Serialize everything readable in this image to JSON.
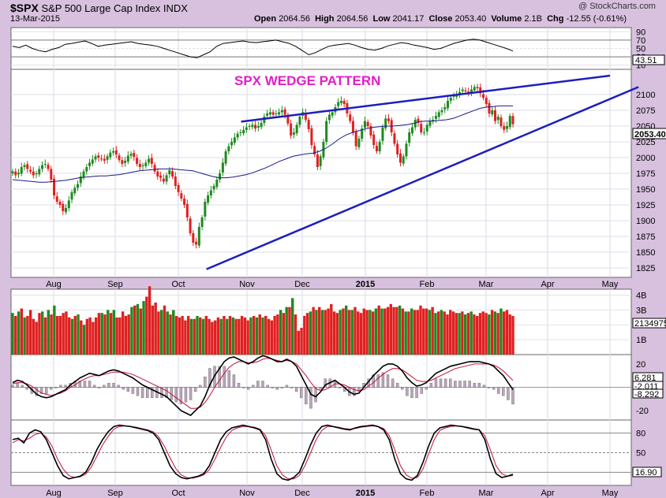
{
  "header": {
    "symbol": "$SPX",
    "name": "S&P 500 Large Cap Index",
    "exchange": "INDX",
    "date": "13-Mar-2015",
    "brand": "@ StockCharts.com",
    "open_label": "Open",
    "open": "2064.56",
    "high_label": "High",
    "high": "2064.56",
    "low_label": "Low",
    "low": "2041.17",
    "close_label": "Close",
    "close": "2053.40",
    "volume_label": "Volume",
    "volume": "2.1B",
    "chg_label": "Chg",
    "chg": "-12.55 (-0.61%)"
  },
  "colors": {
    "up": "#1e8a1e",
    "down": "#e02020",
    "trend": "#1d1dbf",
    "title": "#e01ec8",
    "panel": "#ffffff",
    "bg": "#d8c1df"
  },
  "chart_data": [
    {
      "type": "line",
      "panel": "rsi",
      "yticks": [
        10,
        30,
        50,
        70,
        90
      ],
      "ylim": [
        0,
        100
      ],
      "last_value_label": "43.51",
      "values": [
        55,
        52,
        58,
        50,
        45,
        42,
        48,
        52,
        60,
        62,
        65,
        68,
        62,
        55,
        58,
        60,
        62,
        64,
        66,
        62,
        60,
        58,
        55,
        50,
        45,
        40,
        35,
        30,
        28,
        35,
        42,
        55,
        62,
        64,
        66,
        68,
        65,
        64,
        66,
        68,
        70,
        66,
        62,
        55,
        45,
        35,
        40,
        48,
        55,
        58,
        60,
        62,
        58,
        52,
        48,
        46,
        50,
        56,
        60,
        64,
        62,
        58,
        55,
        52,
        48,
        50,
        56,
        62,
        66,
        70,
        72,
        70,
        65,
        60,
        55,
        50,
        44
      ]
    },
    {
      "type": "candlestick",
      "panel": "price",
      "title": "SPX WEDGE PATTERN",
      "ylim": [
        1810,
        2140
      ],
      "yticks": [
        1825,
        1850,
        1875,
        1900,
        1925,
        1950,
        1975,
        2000,
        2025,
        2050,
        2075,
        2100
      ],
      "last_value_label": "2053.40",
      "xlabels": [
        "Aug",
        "Sep",
        "Oct",
        "Nov",
        "Dec",
        "2015",
        "Feb",
        "Mar",
        "Apr",
        "May"
      ],
      "closes": [
        1978,
        1972,
        1976,
        1985,
        1988,
        1982,
        1978,
        1972,
        1975,
        1982,
        1988,
        1990,
        1982,
        1965,
        1940,
        1930,
        1925,
        1915,
        1920,
        1932,
        1945,
        1952,
        1958,
        1970,
        1978,
        1985,
        1992,
        1997,
        2002,
        2000,
        1998,
        1995,
        2002,
        2008,
        2010,
        2005,
        1996,
        1990,
        1995,
        2003,
        2006,
        2001,
        1990,
        1985,
        1988,
        1992,
        1998,
        1990,
        1978,
        1970,
        1968,
        1962,
        1972,
        1980,
        1970,
        1955,
        1945,
        1935,
        1925,
        1905,
        1880,
        1865,
        1862,
        1890,
        1905,
        1930,
        1940,
        1948,
        1955,
        1965,
        1975,
        1992,
        2010,
        2018,
        2025,
        2032,
        2038,
        2040,
        2044,
        2048,
        2050,
        2052,
        2046,
        2050,
        2055,
        2065,
        2070,
        2072,
        2068,
        2070,
        2072,
        2075,
        2068,
        2054,
        2035,
        2040,
        2052,
        2065,
        2072,
        2060,
        2045,
        2020,
        2005,
        1985,
        2002,
        2025,
        2058,
        2068,
        2072,
        2080,
        2088,
        2090,
        2085,
        2070,
        2058,
        2040,
        2018,
        2030,
        2046,
        2058,
        2050,
        2035,
        2020,
        2010,
        2025,
        2048,
        2062,
        2058,
        2040,
        2022,
        2005,
        1992,
        2002,
        2022,
        2040,
        2048,
        2060,
        2055,
        2040,
        2040,
        2052,
        2058,
        2060,
        2066,
        2072,
        2075,
        2080,
        2090,
        2095,
        2098,
        2100,
        2104,
        2108,
        2105,
        2102,
        2108,
        2112,
        2110,
        2102,
        2095,
        2085,
        2070,
        2075,
        2058,
        2065,
        2050,
        2044,
        2050,
        2066,
        2053
      ],
      "ma_values": [
        1965,
        1964,
        1963,
        1962,
        1961,
        1961,
        1962,
        1963,
        1964,
        1966,
        1968,
        1969,
        1970,
        1971,
        1971,
        1972,
        1973,
        1975,
        1977,
        1979,
        1980,
        1981,
        1982,
        1982,
        1982,
        1981,
        1980,
        1979,
        1976,
        1973,
        1970,
        1968,
        1968,
        1969,
        1971,
        1973,
        1976,
        1980,
        1984,
        1989,
        1994,
        1998,
        2002,
        2004,
        2006,
        2007,
        2010,
        2015,
        2022,
        2030,
        2036,
        2040,
        2043,
        2046,
        2048,
        2049,
        2050,
        2050,
        2051,
        2052,
        2054,
        2057,
        2058,
        2058,
        2059,
        2060,
        2062,
        2066,
        2070,
        2074,
        2078,
        2080,
        2081,
        2082,
        2082,
        2082
      ],
      "trendlines": [
        {
          "name": "upper-resistance",
          "x": [
            "2014-11-01",
            "2015-05-01"
          ],
          "y": [
            2057,
            2130
          ]
        },
        {
          "name": "lower-support",
          "x": [
            "2014-10-15",
            "2015-05-15"
          ],
          "y": [
            1823,
            2112
          ]
        }
      ]
    },
    {
      "type": "bar",
      "panel": "volume",
      "yticks": [
        "1B",
        "2B",
        "3B",
        "4B"
      ],
      "ylim": [
        0,
        4.4
      ],
      "last_value_label": "2134975",
      "values": [
        2.8,
        2.6,
        2.9,
        3.1,
        2.5,
        2.6,
        3.0,
        2.4,
        2.2,
        2.8,
        2.9,
        2.5,
        3.0,
        2.7,
        3.3,
        2.6,
        2.6,
        2.8,
        2.9,
        2.5,
        2.4,
        2.6,
        2.7,
        2.3,
        2.0,
        2.4,
        2.5,
        2.2,
        2.5,
        2.8,
        2.8,
        2.7,
        3.0,
        2.8,
        3.0,
        2.5,
        2.5,
        2.9,
        2.6,
        2.7,
        3.2,
        3.3,
        3.4,
        3.1,
        3.6,
        3.9,
        4.6,
        3.3,
        3.5,
        2.9,
        3.0,
        3.3,
        2.9,
        2.7,
        3.0,
        2.6,
        2.5,
        2.6,
        2.3,
        2.6,
        2.4,
        2.4,
        2.6,
        2.5,
        2.4,
        2.6,
        2.4,
        2.2,
        2.3,
        2.5,
        2.4,
        2.6,
        2.4,
        2.6,
        2.5,
        2.4,
        2.4,
        2.6,
        2.5,
        2.3,
        2.5,
        2.6,
        2.5,
        2.7,
        2.5,
        2.6,
        2.4,
        2.3,
        2.6,
        2.7,
        3.0,
        2.8,
        3.2,
        3.2,
        3.8,
        2.7,
        1.6,
        1.8,
        2.6,
        2.8,
        2.9,
        3.2,
        3.0,
        3.2,
        3.0,
        3.0,
        3.1,
        3.4,
        2.9,
        2.8,
        3.0,
        3.1,
        3.3,
        3.0,
        3.0,
        3.2,
        2.9,
        2.8,
        3.1,
        3.0,
        3.0,
        2.9,
        3.1,
        3.3,
        3.1,
        3.1,
        3.2,
        3.4,
        3.2,
        3.2,
        3.3,
        3.1,
        2.9,
        2.9,
        3.1,
        3.0,
        3.0,
        3.3,
        3.1,
        3.1,
        3.0,
        3.2,
        2.8,
        2.9,
        3.0,
        2.9,
        2.7,
        3.0,
        2.9,
        2.8,
        2.8,
        2.9,
        2.7,
        2.8,
        2.9,
        2.7,
        2.6,
        2.8,
        2.9,
        2.8,
        2.7,
        3.0,
        2.9,
        2.8,
        3.1,
        2.9,
        3.0,
        2.7,
        2.6
      ]
    },
    {
      "type": "line",
      "panel": "macd",
      "yticks": [
        "20",
        "-20"
      ],
      "ylim": [
        -28,
        28
      ],
      "value_labels": [
        "6.281",
        "-2.011",
        "-8.292"
      ],
      "series": [
        {
          "values": [
            4,
            6,
            5,
            2,
            -2,
            -6,
            -8,
            -9,
            -8,
            -6,
            -4,
            -2,
            2,
            5,
            8,
            10,
            12,
            11,
            10,
            12,
            14,
            15,
            14,
            12,
            10,
            8,
            5,
            2,
            0,
            -2,
            -4,
            -6,
            -8,
            -12,
            -16,
            -20,
            -22,
            -24,
            -20,
            -16,
            -8,
            2,
            10,
            16,
            22,
            25,
            26,
            24,
            22,
            20,
            22,
            25,
            27,
            26,
            24,
            22,
            22,
            24,
            22,
            18,
            10,
            2,
            -6,
            -8,
            -4,
            2,
            4,
            6,
            3,
            0,
            -4,
            -6,
            -5,
            0,
            5,
            10,
            14,
            18,
            20,
            20,
            18,
            14,
            8,
            4,
            1,
            2,
            4,
            8,
            12,
            14,
            16,
            18,
            19,
            20,
            21,
            22,
            22,
            22,
            21,
            20,
            18,
            14,
            10,
            4,
            -2
          ]
        },
        {
          "values": [
            3,
            4,
            4,
            3,
            1,
            -2,
            -5,
            -6,
            -7,
            -6,
            -5,
            -3,
            0,
            2,
            5,
            7,
            9,
            10,
            10,
            11,
            12,
            13,
            13,
            13,
            12,
            11,
            9,
            7,
            5,
            3,
            1,
            -1,
            -3,
            -6,
            -9,
            -12,
            -15,
            -18,
            -18,
            -17,
            -13,
            -7,
            0,
            6,
            12,
            17,
            20,
            22,
            22,
            21,
            21,
            22,
            24,
            25,
            24,
            23,
            22,
            23,
            22,
            20,
            15,
            10,
            4,
            -1,
            -3,
            -2,
            0,
            3,
            3,
            2,
            0,
            -2,
            -3,
            -2,
            1,
            4,
            8,
            11,
            14,
            16,
            16,
            15,
            12,
            9,
            6,
            5,
            5,
            6,
            8,
            10,
            12,
            14,
            16,
            17,
            18,
            19,
            20,
            20,
            20,
            20,
            19,
            17,
            14,
            10,
            6
          ]
        }
      ]
    },
    {
      "type": "line",
      "panel": "stochastic",
      "yticks": [
        20,
        50,
        80
      ],
      "ylim": [
        0,
        100
      ],
      "last_value_label": "16.90",
      "series": [
        {
          "values": [
            70,
            72,
            65,
            80,
            85,
            82,
            70,
            50,
            30,
            15,
            10,
            12,
            14,
            20,
            35,
            55,
            70,
            82,
            90,
            92,
            91,
            90,
            88,
            86,
            84,
            80,
            70,
            50,
            30,
            18,
            12,
            10,
            12,
            14,
            18,
            30,
            50,
            70,
            82,
            88,
            90,
            92,
            90,
            88,
            85,
            70,
            40,
            18,
            10,
            8,
            12,
            20,
            40,
            62,
            80,
            90,
            92,
            90,
            88,
            86,
            85,
            88,
            90,
            91,
            92,
            90,
            85,
            70,
            40,
            18,
            10,
            8,
            15,
            35,
            60,
            80,
            88,
            90,
            92,
            91,
            90,
            88,
            86,
            85,
            70,
            40,
            18,
            12,
            14,
            17
          ]
        },
        {
          "values": [
            65,
            70,
            68,
            72,
            78,
            80,
            74,
            60,
            40,
            25,
            15,
            12,
            13,
            17,
            28,
            45,
            62,
            75,
            86,
            90,
            91,
            90,
            89,
            87,
            85,
            82,
            74,
            60,
            42,
            26,
            16,
            12,
            11,
            13,
            16,
            24,
            40,
            58,
            74,
            84,
            88,
            90,
            90,
            89,
            86,
            76,
            54,
            30,
            16,
            10,
            10,
            15,
            30,
            50,
            70,
            84,
            90,
            90,
            89,
            87,
            86,
            87,
            89,
            90,
            91,
            90,
            87,
            76,
            54,
            30,
            16,
            11,
            12,
            25,
            48,
            70,
            84,
            88,
            90,
            91,
            90,
            89,
            87,
            85,
            76,
            54,
            30,
            18,
            14,
            15
          ]
        }
      ]
    }
  ]
}
